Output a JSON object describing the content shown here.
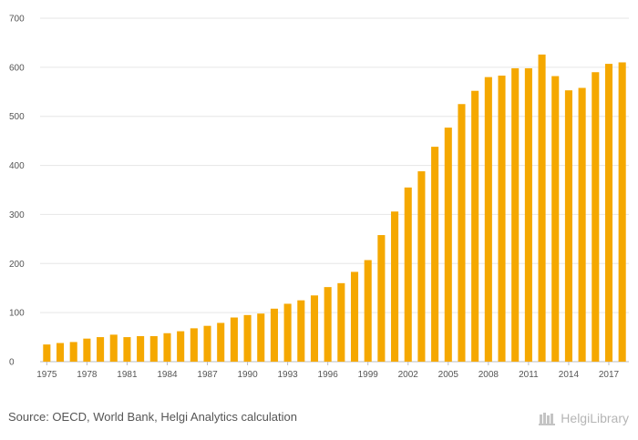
{
  "chart_data": {
    "type": "bar",
    "title": "",
    "xlabel": "",
    "ylabel": "",
    "categories": [
      "1975",
      "1976",
      "1977",
      "1978",
      "1979",
      "1980",
      "1981",
      "1982",
      "1983",
      "1984",
      "1985",
      "1986",
      "1987",
      "1988",
      "1989",
      "1990",
      "1991",
      "1992",
      "1993",
      "1994",
      "1995",
      "1996",
      "1997",
      "1998",
      "1999",
      "2000",
      "2001",
      "2002",
      "2003",
      "2004",
      "2005",
      "2006",
      "2007",
      "2008",
      "2009",
      "2010",
      "2011",
      "2012",
      "2013",
      "2014",
      "2015",
      "2016",
      "2017",
      "2018"
    ],
    "x_tick_labels": [
      "1975",
      "1978",
      "1981",
      "1984",
      "1987",
      "1990",
      "1993",
      "1996",
      "1999",
      "2002",
      "2005",
      "2008",
      "2011",
      "2014",
      "2017"
    ],
    "values": [
      35,
      38,
      40,
      47,
      50,
      55,
      50,
      52,
      52,
      58,
      62,
      68,
      73,
      79,
      90,
      95,
      98,
      108,
      118,
      125,
      135,
      152,
      160,
      183,
      207,
      258,
      306,
      355,
      388,
      438,
      477,
      525,
      552,
      580,
      583,
      598,
      598,
      626,
      582,
      553,
      558,
      590,
      607,
      610
    ],
    "ylim": [
      0,
      700
    ],
    "yticks": [
      0,
      100,
      200,
      300,
      400,
      500,
      600,
      700
    ],
    "grid": true,
    "legend": "none",
    "bar_color": "#f5a800"
  },
  "footer": {
    "source": "Source: OECD, World Bank, Helgi Analytics calculation",
    "brand": "HelgiLibrary"
  },
  "colors": {
    "gridline": "#e6e6e6",
    "text": "#555555",
    "brand": "#b5b5b5"
  }
}
